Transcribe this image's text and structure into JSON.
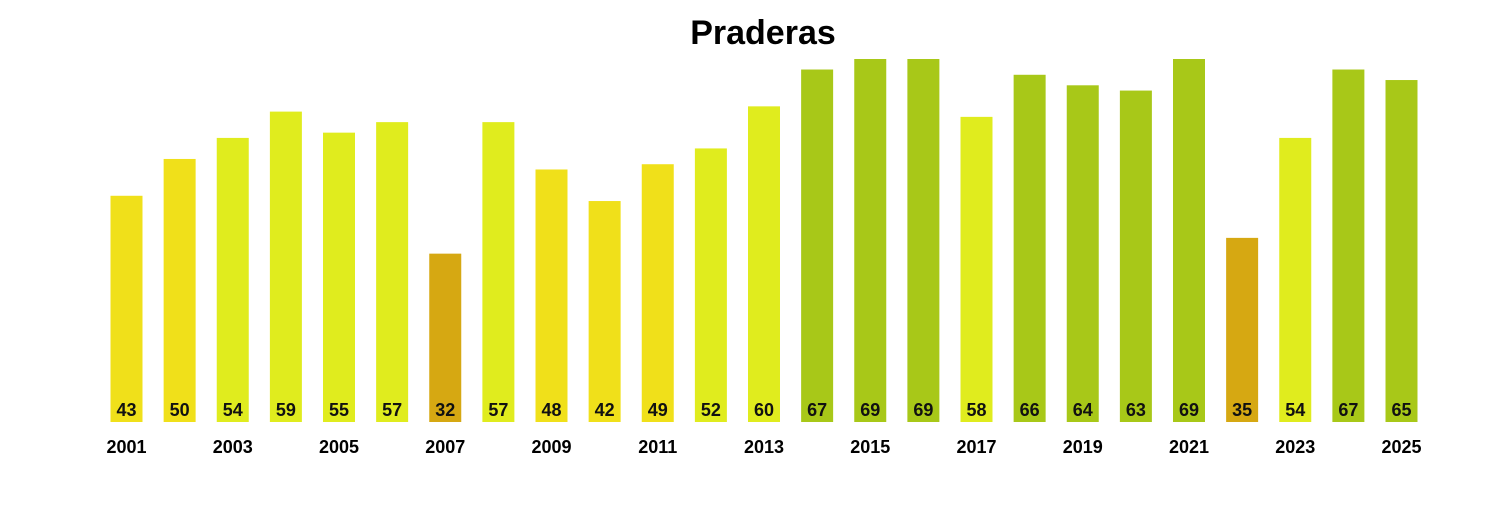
{
  "chart_data": {
    "type": "bar",
    "title": "Praderas",
    "xlabel": "",
    "ylabel": "",
    "ylim": [
      0,
      69
    ],
    "grid": false,
    "legend": "none",
    "categories": [
      "2001",
      "2002",
      "2003",
      "2004",
      "2005",
      "2006",
      "2007",
      "2008",
      "2009",
      "2010",
      "2011",
      "2012",
      "2013",
      "2014",
      "2015",
      "2016",
      "2017",
      "2018",
      "2019",
      "2020",
      "2021",
      "2022",
      "2023",
      "2024",
      "2025"
    ],
    "values": [
      43,
      50,
      54,
      59,
      55,
      57,
      32,
      57,
      48,
      42,
      49,
      52,
      60,
      67,
      69,
      69,
      58,
      66,
      64,
      63,
      69,
      35,
      54,
      67,
      65
    ],
    "x_tick_labels": [
      "2001",
      "2003",
      "2005",
      "2007",
      "2009",
      "2011",
      "2013",
      "2015",
      "2017",
      "2019",
      "2021",
      "2023",
      "2025"
    ],
    "value_labels_shown": true,
    "bar_colors": [
      "#f0e01a",
      "#f0e01a",
      "#e0ec1e",
      "#e0ec1e",
      "#e0ec1e",
      "#e0ec1e",
      "#d6a812",
      "#e0ec1e",
      "#f0e01a",
      "#f0e01a",
      "#f0e01a",
      "#e0ec1e",
      "#e0ec1e",
      "#a8c818",
      "#a8c818",
      "#a8c818",
      "#e0ec1e",
      "#a8c818",
      "#a8c818",
      "#a8c818",
      "#a8c818",
      "#d6a812",
      "#e0ec1e",
      "#a8c818",
      "#a8c818"
    ]
  }
}
